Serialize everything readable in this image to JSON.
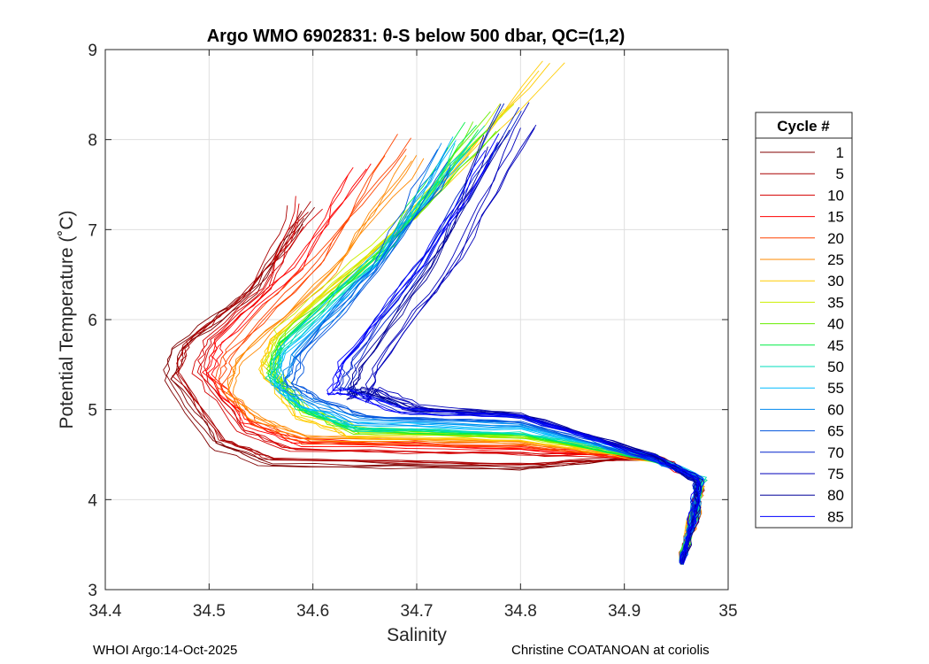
{
  "chart_data": {
    "type": "line",
    "title": "Argo WMO 6902831: θ-S below 500 dbar,  QC=(1,2)",
    "xlabel": "Salinity",
    "ylabel": "Potential Temperature (˚C)",
    "xlim": [
      34.4,
      35.0
    ],
    "ylim": [
      3,
      9
    ],
    "xticks": [
      34.4,
      34.5,
      34.6,
      34.7,
      34.8,
      34.9,
      35.0
    ],
    "xtick_labels": [
      "34.4",
      "34.5",
      "34.6",
      "34.7",
      "34.8",
      "34.9",
      "35"
    ],
    "yticks": [
      3,
      4,
      5,
      6,
      7,
      8,
      9
    ],
    "ytick_labels": [
      "3",
      "4",
      "5",
      "6",
      "7",
      "8",
      "9"
    ],
    "grid": true,
    "legend_title": "Cycle #",
    "legend_position": "right",
    "series": [
      {
        "name": "1",
        "color": "#800000",
        "top": [
          34.6,
          7.27
        ],
        "min": [
          34.46,
          5.35
        ],
        "bottom_t": 4.38
      },
      {
        "name": "5",
        "color": "#aa0000",
        "top": [
          34.59,
          7.25
        ],
        "min": [
          34.47,
          5.4
        ],
        "bottom_t": 4.43
      },
      {
        "name": "10",
        "color": "#d40000",
        "top": [
          34.6,
          7.3
        ],
        "min": [
          34.49,
          5.45
        ],
        "bottom_t": 4.55
      },
      {
        "name": "15",
        "color": "#ff0000",
        "top": [
          34.65,
          7.75
        ],
        "min": [
          34.5,
          5.4
        ],
        "bottom_t": 4.6
      },
      {
        "name": "20",
        "color": "#ff4400",
        "top": [
          34.68,
          8.02
        ],
        "min": [
          34.51,
          5.3
        ],
        "bottom_t": 4.63
      },
      {
        "name": "25",
        "color": "#ff8800",
        "top": [
          34.7,
          7.88
        ],
        "min": [
          34.52,
          5.2
        ],
        "bottom_t": 4.67
      },
      {
        "name": "30",
        "color": "#ffcc00",
        "top": [
          34.83,
          8.9
        ],
        "min": [
          34.55,
          5.45
        ],
        "bottom_t": 4.7
      },
      {
        "name": "35",
        "color": "#ccee00",
        "top": [
          34.78,
          8.48
        ],
        "min": [
          34.56,
          5.5
        ],
        "bottom_t": 4.72
      },
      {
        "name": "40",
        "color": "#66ee00",
        "top": [
          34.77,
          8.25
        ],
        "min": [
          34.56,
          5.45
        ],
        "bottom_t": 4.74
      },
      {
        "name": "45",
        "color": "#00ee44",
        "top": [
          34.76,
          8.2
        ],
        "min": [
          34.56,
          5.4
        ],
        "bottom_t": 4.76
      },
      {
        "name": "50",
        "color": "#00ddbb",
        "top": [
          34.75,
          8.1
        ],
        "min": [
          34.56,
          5.35
        ],
        "bottom_t": 4.78
      },
      {
        "name": "55",
        "color": "#00bbff",
        "top": [
          34.74,
          8.0
        ],
        "min": [
          34.56,
          5.3
        ],
        "bottom_t": 4.82
      },
      {
        "name": "60",
        "color": "#0088ee",
        "top": [
          34.73,
          7.9
        ],
        "min": [
          34.57,
          5.25
        ],
        "bottom_t": 4.86
      },
      {
        "name": "65",
        "color": "#0055dd",
        "top": [
          34.72,
          7.8
        ],
        "min": [
          34.58,
          5.3
        ],
        "bottom_t": 4.9
      },
      {
        "name": "70",
        "color": "#0022cc",
        "top": [
          34.79,
          8.45
        ],
        "min": [
          34.63,
          5.2
        ],
        "bottom_t": 4.95
      },
      {
        "name": "75",
        "color": "#0000bb",
        "top": [
          34.81,
          8.3
        ],
        "min": [
          34.65,
          5.1
        ],
        "bottom_t": 4.97
      },
      {
        "name": "80",
        "color": "#000099",
        "top": [
          34.78,
          8.1
        ],
        "min": [
          34.64,
          5.15
        ],
        "bottom_t": 4.98
      },
      {
        "name": "85",
        "color": "#0000ff",
        "top": [
          34.77,
          8.0
        ],
        "min": [
          34.62,
          5.2
        ],
        "bottom_t": 4.96
      }
    ]
  },
  "footer": {
    "left": "WHOI Argo:14-Oct-2025",
    "right": "Christine COATANOAN at coriolis"
  }
}
